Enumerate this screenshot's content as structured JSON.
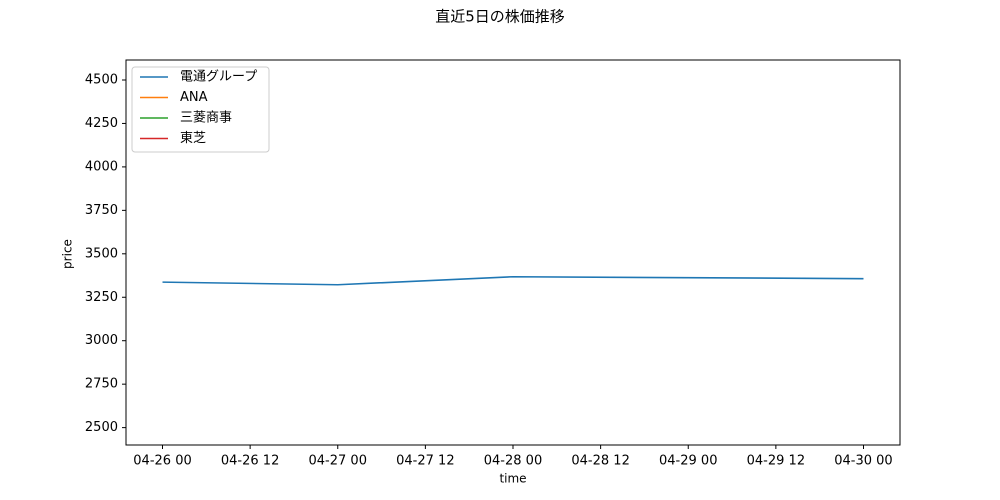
{
  "chart_data": {
    "type": "line",
    "title": "直近5日の株価推移",
    "x_label": "time",
    "y_label": "price",
    "x": [
      "04-26 00",
      "04-27 00",
      "04-28 00",
      "04-30 00"
    ],
    "series": [
      {
        "name": "電通グループ",
        "color": "#1f77b4",
        "values": [
          3337,
          3322,
          3368,
          3357
        ]
      },
      {
        "name": "ANA",
        "color": "#ff7f0e",
        "values": [
          null,
          null,
          null,
          null
        ]
      },
      {
        "name": "三菱商事",
        "color": "#2ca02c",
        "values": [
          null,
          null,
          null,
          null
        ]
      },
      {
        "name": "東芝",
        "color": "#d62728",
        "values": [
          null,
          null,
          null,
          null
        ]
      }
    ],
    "xlim": [
      "04-25 19",
      "04-30 05"
    ],
    "xticks": [
      "04-26 00",
      "04-26 12",
      "04-27 00",
      "04-27 12",
      "04-28 00",
      "04-28 12",
      "04-29 00",
      "04-29 12",
      "04-30 00"
    ],
    "ylim": [
      2400,
      4615
    ],
    "yticks": [
      2500,
      2750,
      3000,
      3250,
      3500,
      3750,
      4000,
      4250,
      4500
    ],
    "legend": "upper left",
    "grid": false
  }
}
